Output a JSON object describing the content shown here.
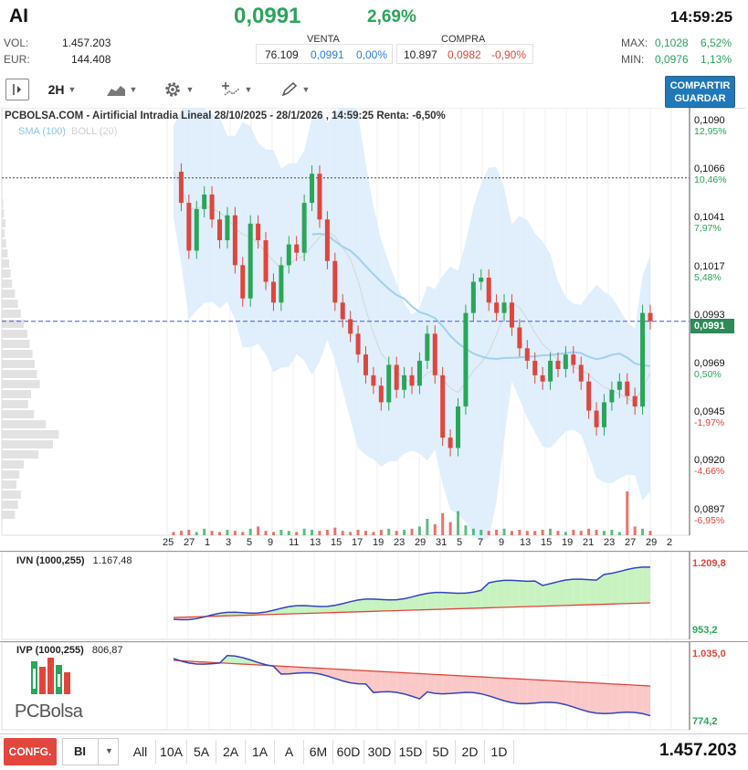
{
  "header": {
    "ticker": "AI",
    "price": "0,0991",
    "change_pct": "2,69%",
    "time": "14:59:25",
    "vol_label": "VOL:",
    "vol_value": "1.457.203",
    "eur_label": "EUR:",
    "eur_value": "144.408",
    "venta_label": "VENTA",
    "compra_label": "COMPRA",
    "venta_qty": "76.109",
    "venta_price": "0,0991",
    "venta_pct": "0,00%",
    "compra_qty": "10.897",
    "compra_price": "0,0982",
    "compra_pct": "-0,90%",
    "max_label": "MAX:",
    "max_value": "0,1028",
    "max_pct": "6,52%",
    "min_label": "MIN:",
    "min_value": "0,0976",
    "min_pct": "1,13%"
  },
  "toolbar": {
    "interval": "2H",
    "share_line1": "COMPARTIR",
    "share_line2": "GUARDAR"
  },
  "chart_data": {
    "type": "candlestick",
    "title": "PCBOLSA.COM - Airtificial Intradia Lineal 28/10/2025 - 28/1/2026 , 14:59:25 Renta: -6,50%",
    "legend": [
      {
        "name": "SMA (100)",
        "color": "#8fc6ea"
      },
      {
        "name": "BOLL (20)",
        "color": "#d0d0d0"
      }
    ],
    "y_ticks": [
      {
        "value": "0,1090",
        "pct": "12,95%",
        "pct_color": "green"
      },
      {
        "value": "0,1066",
        "pct": "10,46%",
        "pct_color": "green"
      },
      {
        "value": "0,1041",
        "pct": "7,97%",
        "pct_color": "green"
      },
      {
        "value": "0,1017",
        "pct": "5,48%",
        "pct_color": "green"
      },
      {
        "value": "0,0993",
        "pct": "",
        "pct_color": "green"
      },
      {
        "value": "0,0969",
        "pct": "0,50%",
        "pct_color": "green"
      },
      {
        "value": "0,0945",
        "pct": "-1,97%",
        "pct_color": "red"
      },
      {
        "value": "0,0920",
        "pct": "-4,66%",
        "pct_color": "red"
      },
      {
        "value": "0,0897",
        "pct": "-6,95%",
        "pct_color": "red"
      }
    ],
    "current_price_label": "0,0991",
    "reference_price": 0.106,
    "ylim": [
      0.0888,
      0.1092
    ],
    "x_ticks": [
      "25",
      "27",
      "1",
      "3",
      "5",
      "9",
      "11",
      "13",
      "15",
      "17",
      "19",
      "23",
      "29",
      "31",
      "5",
      "7",
      "9",
      "13",
      "15",
      "19",
      "21",
      "23",
      "27",
      "29",
      "2"
    ],
    "close_series": [
      0.1063,
      0.1048,
      0.1025,
      0.1045,
      0.1052,
      0.104,
      0.103,
      0.1042,
      0.1018,
      0.1002,
      0.1038,
      0.103,
      0.101,
      0.1,
      0.1018,
      0.1028,
      0.1024,
      0.1048,
      0.1062,
      0.104,
      0.102,
      0.1,
      0.0992,
      0.0985,
      0.0975,
      0.0965,
      0.096,
      0.0952,
      0.097,
      0.0958,
      0.0965,
      0.096,
      0.0972,
      0.0985,
      0.0965,
      0.0935,
      0.093,
      0.095,
      0.0995,
      0.101,
      0.1012,
      0.1,
      0.0995,
      0.1,
      0.0988,
      0.0978,
      0.0972,
      0.0965,
      0.0962,
      0.0972,
      0.0968,
      0.0975,
      0.097,
      0.0962,
      0.0948,
      0.094,
      0.0952,
      0.0958,
      0.0962,
      0.0955,
      0.095,
      0.0995,
      0.0991
    ],
    "volumes": [
      3,
      4,
      5,
      3,
      6,
      4,
      3,
      5,
      4,
      3,
      6,
      8,
      4,
      3,
      5,
      4,
      3,
      6,
      5,
      4,
      5,
      7,
      4,
      3,
      5,
      4,
      3,
      5,
      6,
      4,
      5,
      6,
      8,
      15,
      10,
      20,
      12,
      22,
      9,
      6,
      5,
      4,
      5,
      6,
      4,
      5,
      4,
      4,
      5,
      6,
      4,
      3,
      5,
      4,
      6,
      5,
      4,
      5,
      3,
      40,
      8,
      6,
      4
    ]
  },
  "indicators": {
    "ivn": {
      "title": "IVN (1000,255)",
      "value": "1.167,48",
      "top_label": "1.209,8",
      "bottom_label": "953,2"
    },
    "ivp": {
      "title": "IVP (1000,255)",
      "value": "806,87",
      "top_label": "1.035,0",
      "bottom_label": "774,2"
    }
  },
  "logo": {
    "text": "PCBolsa"
  },
  "bottom": {
    "config_label": "CONFG.",
    "select_value": "BI",
    "periods": [
      "All",
      "10A",
      "5A",
      "2A",
      "1A",
      "A",
      "6M",
      "60D",
      "30D",
      "15D",
      "5D",
      "2D",
      "1D"
    ],
    "total_volume": "1.457.203"
  }
}
